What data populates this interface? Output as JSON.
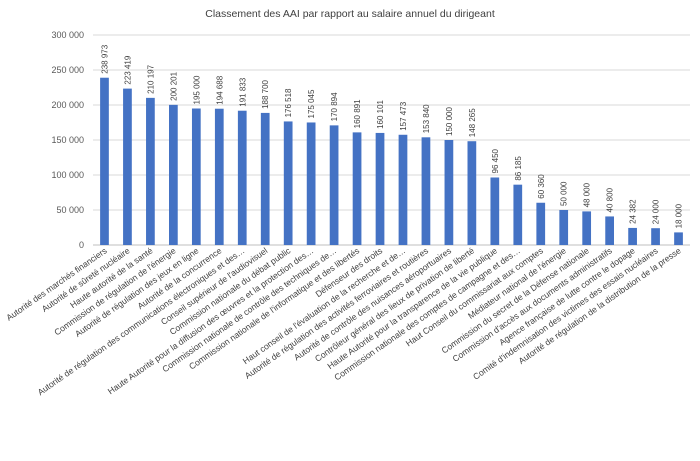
{
  "chart_data": {
    "type": "bar",
    "title": "Classement des AAI par rapport au salaire annuel du dirigeant",
    "xlabel": "",
    "ylabel": "",
    "ylim": [
      0,
      300000
    ],
    "yticks": [
      0,
      50000,
      100000,
      150000,
      200000,
      250000,
      300000
    ],
    "ytick_labels": [
      "0",
      "50 000",
      "100 000",
      "150 000",
      "200 000",
      "250 000",
      "300 000"
    ],
    "grid": true,
    "legend": "none",
    "bar_color": "#4472C4",
    "categories": [
      "Autorité des marchés financiers",
      "Autorité de sûreté nucléaire",
      "Haute autorité de la santé",
      "Commission de régulation de l'énergie",
      "Autorité de régulation des jeux en ligne",
      "Autorité de la concurrence",
      "Autorité de régulation des communications électroniques et des…",
      "Conseil supérieur de l'audiovisuel",
      "Commission nationale du débat public",
      "Haute Autorité pour la diffusion des œuvres et la protection des…",
      "Commission nationale de contrôle des techniques de…",
      "Commission nationale de l'informatique et des libertés",
      "Défenseur des droits",
      "Haut conseil de l'évaluation de la recherche et de…",
      "Autorité de régulation des activités ferroviaires et routières",
      "Autorité de contrôle des nuisances aéroportuaires",
      "Contrôleur général des lieux de privation de liberté",
      "Haute Autorité pour la transparence de la vie publique",
      "Commission nationale des comptes de campagne et des…",
      "Haut Conseil du commissariat aux comptes",
      "Médiateur national de l'énergie",
      "Commission du secret de la Défense nationale",
      "Commission d'accès aux documents administratifs",
      "Agence française de lutte contre le dopage",
      "Comité d'indemnisation des victimes des essais nucléaires",
      "Autorité de régulation de la distribution de la presse"
    ],
    "values": [
      238973,
      223419,
      210197,
      200201,
      195000,
      194688,
      191833,
      188700,
      176518,
      175045,
      170894,
      160891,
      160101,
      157473,
      153840,
      150000,
      148265,
      96450,
      86185,
      60360,
      50000,
      48000,
      40800,
      24382,
      24000,
      18000
    ],
    "value_labels": [
      "238 973",
      "223 419",
      "210 197",
      "200 201",
      "195 000",
      "194 688",
      "191 833",
      "188 700",
      "176 518",
      "175 045",
      "170 894",
      "160 891",
      "160 101",
      "157 473",
      "153 840",
      "150 000",
      "148 265",
      "96 450",
      "86 185",
      "60 360",
      "50 000",
      "48 000",
      "40 800",
      "24 382",
      "24 000",
      "18 000"
    ]
  }
}
